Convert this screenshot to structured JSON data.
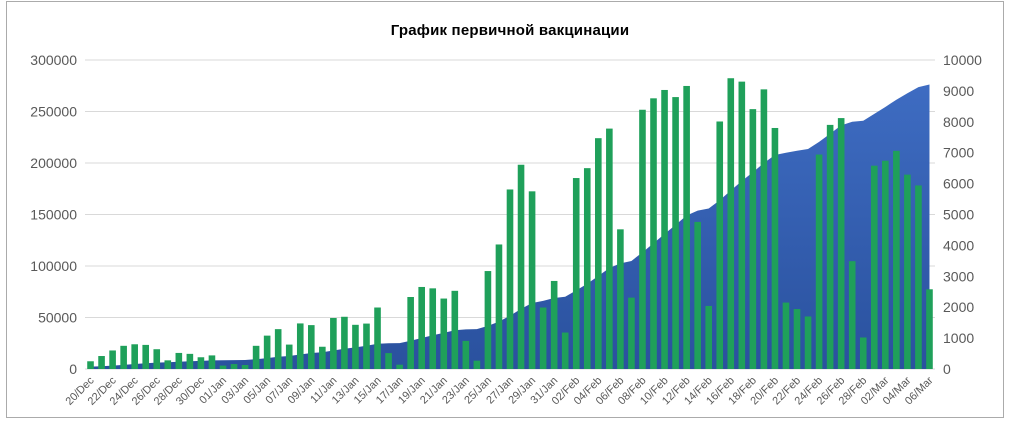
{
  "chart_data": {
    "type": "combo",
    "title": "График первичной вакцинации",
    "grid": true,
    "legend": "none",
    "colors": {
      "bar_green": "#1FA05A",
      "area_blue_top": "#3E6CC2",
      "area_blue_bottom": "#2A519E",
      "gridline": "#D9D9D9",
      "axis_label": "#595959",
      "title_text": "#000000",
      "frame_border": "#ABABAB",
      "background": "#FFFFFF"
    },
    "left_axis": {
      "min": 0,
      "max": 300000,
      "step": 50000,
      "ticks": [
        "0",
        "50000",
        "100000",
        "150000",
        "200000",
        "250000",
        "300000"
      ]
    },
    "right_axis": {
      "min": 0,
      "max": 10000,
      "step": 1000,
      "ticks": [
        "0",
        "1000",
        "2000",
        "3000",
        "4000",
        "5000",
        "6000",
        "7000",
        "8000",
        "9000",
        "10000"
      ]
    },
    "x_tick_labels": [
      "20/Dec",
      "22/Dec",
      "24/Dec",
      "26/Dec",
      "28/Dec",
      "30/Dec",
      "01/Jan",
      "03/Jan",
      "05/Jan",
      "07/Jan",
      "09/Jan",
      "11/Jan",
      "13/Jan",
      "15/Jan",
      "17/Jan",
      "19/Jan",
      "21/Jan",
      "23/Jan",
      "25/Jan",
      "27/Jan",
      "29/Jan",
      "31/Jan",
      "02/Feb",
      "04/Feb",
      "06/Feb",
      "08/Feb",
      "10/Feb",
      "12/Feb",
      "14/Feb",
      "16/Feb",
      "18/Feb",
      "20/Feb",
      "22/Feb",
      "24/Feb",
      "26/Feb",
      "28/Feb",
      "02/Mar",
      "04/Mar",
      "06/Mar"
    ],
    "categories": [
      "20/Dec",
      "21/Dec",
      "22/Dec",
      "23/Dec",
      "24/Dec",
      "25/Dec",
      "26/Dec",
      "27/Dec",
      "28/Dec",
      "29/Dec",
      "30/Dec",
      "31/Dec",
      "01/Jan",
      "02/Jan",
      "03/Jan",
      "04/Jan",
      "05/Jan",
      "06/Jan",
      "07/Jan",
      "08/Jan",
      "09/Jan",
      "10/Jan",
      "11/Jan",
      "12/Jan",
      "13/Jan",
      "14/Jan",
      "15/Jan",
      "16/Jan",
      "17/Jan",
      "18/Jan",
      "19/Jan",
      "20/Jan",
      "21/Jan",
      "22/Jan",
      "23/Jan",
      "24/Jan",
      "25/Jan",
      "26/Jan",
      "27/Jan",
      "28/Jan",
      "29/Jan",
      "30/Jan",
      "31/Jan",
      "01/Feb",
      "02/Feb",
      "03/Feb",
      "04/Feb",
      "05/Feb",
      "06/Feb",
      "07/Feb",
      "08/Feb",
      "09/Feb",
      "10/Feb",
      "11/Feb",
      "12/Feb",
      "13/Feb",
      "14/Feb",
      "15/Feb",
      "16/Feb",
      "17/Feb",
      "18/Feb",
      "19/Feb",
      "20/Feb",
      "21/Feb",
      "22/Feb",
      "23/Feb",
      "24/Feb",
      "25/Feb",
      "26/Feb",
      "27/Feb",
      "28/Feb",
      "01/Mar",
      "02/Mar",
      "03/Mar",
      "04/Mar",
      "05/Mar",
      "06/Mar"
    ],
    "series": [
      {
        "name": "daily-vaccinations",
        "type": "bar",
        "axis": "right",
        "values": [
          250,
          420,
          600,
          750,
          800,
          780,
          640,
          280,
          520,
          490,
          380,
          440,
          110,
          160,
          130,
          750,
          1080,
          1290,
          790,
          1475,
          1420,
          720,
          1650,
          1690,
          1430,
          1470,
          1990,
          515,
          140,
          2330,
          2655,
          2610,
          2280,
          2530,
          910,
          270,
          3170,
          4030,
          5810,
          6610,
          5750,
          1990,
          2850,
          1180,
          6180,
          6500,
          7470,
          7780,
          4520,
          2310,
          8390,
          8760,
          9030,
          8800,
          9160,
          4760,
          2040,
          8010,
          9410,
          9300,
          8410,
          9050,
          7800,
          2150,
          1940,
          1700,
          6940,
          7900,
          8120,
          3490,
          1020,
          6580,
          6740,
          7060,
          6290,
          5940,
          2580
        ]
      },
      {
        "name": "cumulative-vaccinations",
        "type": "area",
        "axis": "left",
        "values": [
          2250,
          2670,
          3270,
          4020,
          4820,
          5600,
          6240,
          6520,
          7040,
          7530,
          7910,
          8350,
          8460,
          8620,
          8750,
          9500,
          10580,
          11870,
          12660,
          14135,
          15555,
          16275,
          17925,
          19615,
          21045,
          22515,
          24505,
          25020,
          25160,
          27490,
          30145,
          32755,
          35035,
          37565,
          38475,
          38745,
          41915,
          45945,
          51755,
          58365,
          64115,
          66105,
          68955,
          70135,
          76315,
          82815,
          90285,
          98065,
          102585,
          104895,
          113285,
          122045,
          131075,
          139875,
          149035,
          153795,
          155835,
          163845,
          173255,
          182555,
          190965,
          200015,
          207815,
          209965,
          211905,
          213605,
          220545,
          228445,
          236565,
          240055,
          241075,
          247655,
          254395,
          261455,
          267745,
          273685,
          276265
        ]
      }
    ]
  }
}
